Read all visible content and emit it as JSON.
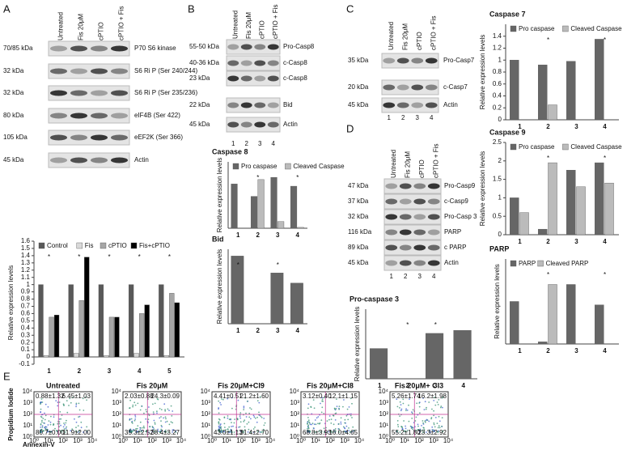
{
  "panels": {
    "A": {
      "label": "A",
      "conditions": [
        "Untreated",
        "Fis 20μM",
        "cPTIO",
        "cPTIO + Fis"
      ],
      "rows": [
        {
          "kda": "70/85 kDa",
          "protein": "P70 S6 kinase"
        },
        {
          "kda": "32 kDa",
          "protein": "S6 Ri P (Ser 240/244)"
        },
        {
          "kda": "32 kDa",
          "protein": "S6 Ri P (Ser 235/236)"
        },
        {
          "kda": "80 kDa",
          "protein": "eIF4B (Ser 422)"
        },
        {
          "kda": "105 kDa",
          "protein": "eEF2K (Ser 366)"
        },
        {
          "kda": "45 kDa",
          "protein": "Actin"
        }
      ]
    },
    "B": {
      "label": "B",
      "conditions": [
        "Untreated",
        "Fis 20μM",
        "cPTIO",
        "cPTIO + Fis"
      ],
      "rows": [
        {
          "kda": "55-50 kDa",
          "protein": "Pro-Casp8"
        },
        {
          "kda": "40-36 kDa",
          "protein": "c-Casp8"
        },
        {
          "kda": "23 kDa",
          "protein": "c-Casp8"
        },
        {
          "kda": "22 kDa",
          "protein": "Bid"
        },
        {
          "kda": "45 kDa",
          "protein": "Actin"
        }
      ],
      "lanes": [
        "1",
        "2",
        "3",
        "4"
      ]
    },
    "C": {
      "label": "C",
      "conditions": [
        "Untreated",
        "Fis 20μM",
        "cPTIO",
        "cPTIO + Fis"
      ],
      "rows": [
        {
          "kda": "35 kDa",
          "protein": "Pro-Casp7"
        },
        {
          "kda": "20 kDa",
          "protein": "c-Casp7"
        },
        {
          "kda": "45 kDa",
          "protein": "Actin"
        }
      ],
      "lanes": [
        "1",
        "2",
        "3",
        "4"
      ]
    },
    "D": {
      "label": "D",
      "conditions": [
        "Untreated",
        "Fis 20μM",
        "cPTIO",
        "cPTIO + Fis"
      ],
      "rows": [
        {
          "kda": "47 kDa",
          "protein": "Pro-Casp9"
        },
        {
          "kda": "37 kDa",
          "protein": "c-Casp9"
        },
        {
          "kda": "32 kDa",
          "protein": "Pro-Casp 3"
        },
        {
          "kda": "116 kDa",
          "protein": "PARP"
        },
        {
          "kda": "89 kDa",
          "protein": "c PARP"
        },
        {
          "kda": "45 kDa",
          "protein": "Actin"
        }
      ],
      "lanes": [
        "1",
        "2",
        "3",
        "4"
      ]
    },
    "E": {
      "label": "E",
      "ylabel": "Propidium Iodide",
      "xlabel": "Annexin-V",
      "axis_ticks": [
        "10⁰",
        "10¹",
        "10²",
        "10³",
        "10⁴"
      ],
      "plots": [
        {
          "title": "Untreated",
          "quadrants": [
            "0.88±1.32",
            "6.45±1.03",
            "80.7±0.00",
            "11.9±2.00"
          ]
        },
        {
          "title": "Fis 20μM",
          "quadrants": [
            "2.03±0.88",
            "24.3±0.09",
            "35.3±2.52",
            "38.4±3.27"
          ]
        },
        {
          "title": "Fis 20μM+CI9",
          "quadrants": [
            "4.41±0.51",
            "21.2±1.60",
            "43.0±1.13",
            "31.4±2.70"
          ]
        },
        {
          "title": "Fis 20μM+CI8",
          "quadrants": [
            "3.12±0.40",
            "12.1±1.15",
            "68.8±3.93",
            "16.0±4.65"
          ]
        },
        {
          "title": "Fis 20μM+ CI3",
          "quadrants": [
            "5.26±1.74",
            "16.2±1.98",
            "55.2±1.80",
            "23.3±2.92"
          ]
        }
      ]
    }
  },
  "chart_data": [
    {
      "type": "bar",
      "ylabel": "Relative expression levels",
      "categories": [
        "1",
        "2",
        "3",
        "4",
        "5"
      ],
      "series": [
        {
          "name": "Control",
          "color": "#595959",
          "values": [
            1,
            1,
            1,
            1,
            1
          ]
        },
        {
          "name": "Fis",
          "color": "#d9d9d9",
          "values": [
            0.02,
            0.05,
            0.02,
            0.05,
            0.02
          ]
        },
        {
          "name": "cPTIO",
          "color": "#a6a6a6",
          "values": [
            0.55,
            0.78,
            0.55,
            0.6,
            0.88
          ]
        },
        {
          "name": "Fis+cPTIO",
          "color": "#000000",
          "values": [
            0.58,
            1.38,
            0.55,
            0.72,
            0.75
          ]
        }
      ],
      "ylim": [
        -0.1,
        1.6
      ],
      "yticks": [
        -0.1,
        0,
        0.1,
        0.2,
        0.3,
        0.4,
        0.5,
        0.6,
        0.7,
        0.8,
        0.9,
        1,
        1.1,
        1.2,
        1.3,
        1.4,
        1.5,
        1.6
      ],
      "annotations": [
        {
          "text": "*",
          "category": 0
        },
        {
          "text": "*",
          "category": 1
        },
        {
          "text": "*",
          "category": 2
        },
        {
          "text": "*",
          "category": 3
        },
        {
          "text": "*",
          "category": 4
        }
      ]
    },
    {
      "type": "bar",
      "title": "Caspase 8",
      "ylabel": "Relative expression levels",
      "categories": [
        "1",
        "2",
        "3",
        "4"
      ],
      "series": [
        {
          "name": "Pro caspase",
          "color": "#666666",
          "values": [
            1,
            0.72,
            1.15,
            0.95
          ]
        },
        {
          "name": "Cleaved Caspase",
          "color": "#bbbbbb",
          "values": [
            0,
            1.1,
            0.15,
            0.02
          ]
        }
      ],
      "ylim": [
        0,
        1.5
      ],
      "annotations": [
        {
          "text": "*",
          "category": 1
        },
        {
          "text": "*",
          "category": 3
        }
      ]
    },
    {
      "type": "bar",
      "title": "Bid",
      "ylabel": "Relative expression levels",
      "categories": [
        "1",
        "2",
        "3",
        "4"
      ],
      "values": [
        1,
        0,
        0.75,
        0.6
      ],
      "color": "#666666",
      "ylim": [
        0,
        1.1
      ],
      "annotations": [
        {
          "text": "*",
          "category": 0
        },
        {
          "text": "*",
          "category": 2
        }
      ]
    },
    {
      "type": "bar",
      "title": "Caspase 7",
      "ylabel": "Relative expression levels",
      "categories": [
        "1",
        "2",
        "3",
        "4"
      ],
      "series": [
        {
          "name": "Pro caspase",
          "color": "#666666",
          "values": [
            1,
            0.92,
            0.98,
            1.35
          ]
        },
        {
          "name": "Cleaved Caspase",
          "color": "#bbbbbb",
          "values": [
            0,
            0.25,
            0,
            0
          ]
        }
      ],
      "ylim": [
        0,
        1.6
      ],
      "yticks": [
        0,
        0.2,
        0.4,
        0.6,
        0.8,
        1,
        1.2,
        1.4
      ],
      "annotations": [
        {
          "text": "*",
          "category": 1
        },
        {
          "text": "*",
          "category": 3
        }
      ]
    },
    {
      "type": "bar",
      "title": "Pro-caspase 3",
      "ylabel": "Relative expression levels",
      "categories": [
        "1",
        "2",
        "3",
        "4"
      ],
      "values": [
        1,
        0,
        1.5,
        1.6
      ],
      "color": "#666666",
      "ylim": [
        0,
        2.3
      ],
      "annotations": [
        {
          "text": "*",
          "category": 1
        },
        {
          "text": "*",
          "category": 2
        }
      ]
    },
    {
      "type": "bar",
      "title": "Caspase 9",
      "ylabel": "Relative expression levels",
      "categories": [
        "1",
        "2",
        "3",
        "4"
      ],
      "series": [
        {
          "name": "Pro caspase",
          "color": "#666666",
          "values": [
            1,
            0.15,
            1.75,
            1.95
          ]
        },
        {
          "name": "Cleaved Caspase",
          "color": "#bbbbbb",
          "values": [
            0.6,
            1.95,
            1.3,
            1.4
          ]
        }
      ],
      "ylim": [
        0,
        2.5
      ],
      "yticks": [
        0,
        0.5,
        1,
        1.5,
        2,
        2.5
      ],
      "annotations": [
        {
          "text": "*",
          "category": 1
        },
        {
          "text": "*",
          "category": 3
        }
      ]
    },
    {
      "type": "bar",
      "title": "PARP",
      "ylabel": "Relative expression levels",
      "categories": [
        "1",
        "2",
        "3",
        "4"
      ],
      "series": [
        {
          "name": "PARP",
          "color": "#666666",
          "values": [
            1,
            0.05,
            1.4,
            0.92
          ]
        },
        {
          "name": "Cleaved PARP",
          "color": "#bbbbbb",
          "values": [
            0,
            1.4,
            0,
            0
          ]
        }
      ],
      "ylim": [
        0,
        2
      ],
      "annotations": [
        {
          "text": "*",
          "category": 1
        },
        {
          "text": "*",
          "category": 3
        }
      ]
    }
  ]
}
